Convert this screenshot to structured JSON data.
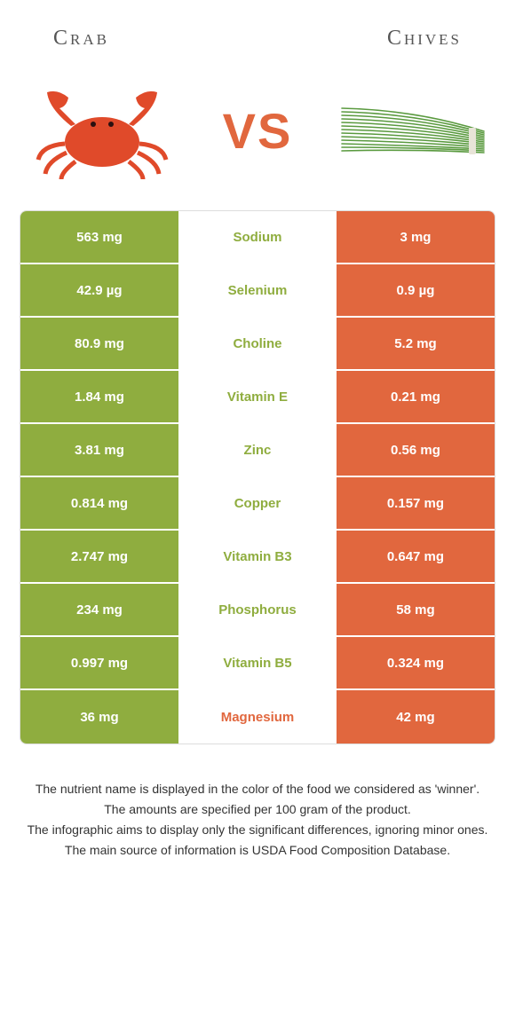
{
  "header": {
    "left_title": "Crab",
    "right_title": "Chives"
  },
  "vs_label": "VS",
  "colors": {
    "left_bg": "#8fad3f",
    "right_bg": "#e1673e",
    "mid_green": "#8fad3f",
    "mid_orange": "#e1673e",
    "vs_color": "#e1673e",
    "crab_body": "#e04a2a",
    "chives_green": "#5a9a3f"
  },
  "rows": [
    {
      "left": "563 mg",
      "mid": "Sodium",
      "right": "3 mg",
      "winner": "left"
    },
    {
      "left": "42.9 µg",
      "mid": "Selenium",
      "right": "0.9 µg",
      "winner": "left"
    },
    {
      "left": "80.9 mg",
      "mid": "Choline",
      "right": "5.2 mg",
      "winner": "left"
    },
    {
      "left": "1.84 mg",
      "mid": "Vitamin E",
      "right": "0.21 mg",
      "winner": "left"
    },
    {
      "left": "3.81 mg",
      "mid": "Zinc",
      "right": "0.56 mg",
      "winner": "left"
    },
    {
      "left": "0.814 mg",
      "mid": "Copper",
      "right": "0.157 mg",
      "winner": "left"
    },
    {
      "left": "2.747 mg",
      "mid": "Vitamin B3",
      "right": "0.647 mg",
      "winner": "left"
    },
    {
      "left": "234 mg",
      "mid": "Phosphorus",
      "right": "58 mg",
      "winner": "left"
    },
    {
      "left": "0.997 mg",
      "mid": "Vitamin B5",
      "right": "0.324 mg",
      "winner": "left"
    },
    {
      "left": "36 mg",
      "mid": "Magnesium",
      "right": "42 mg",
      "winner": "right"
    }
  ],
  "footer": {
    "line1": "The nutrient name is displayed in the color of the food we considered as 'winner'.",
    "line2": "The amounts are specified per 100 gram of the product.",
    "line3": "The infographic aims to display only the significant differences, ignoring minor ones.",
    "line4": "The main source of information is USDA Food Composition Database."
  }
}
